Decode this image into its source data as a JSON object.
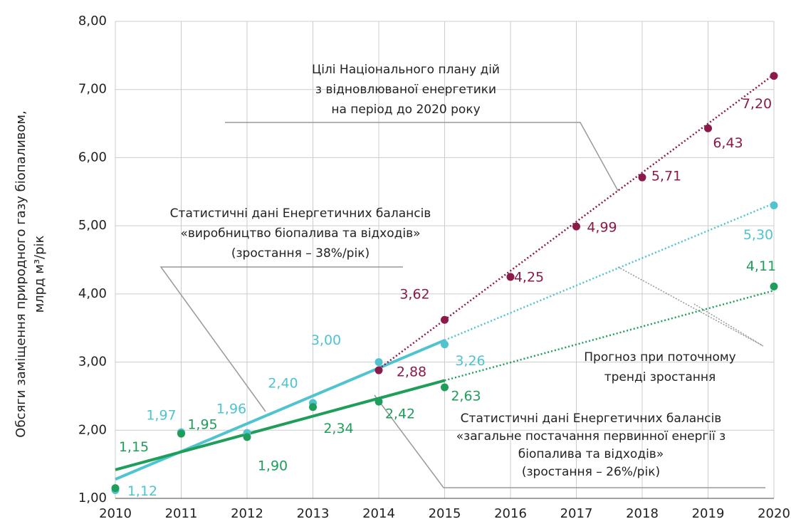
{
  "chart_data": {
    "type": "line",
    "y_label": [
      "Обсяги заміщення природного газу біопаливом,",
      "млрд м³/рік"
    ],
    "xlim": [
      2010,
      2020
    ],
    "xticks": [
      2010,
      2011,
      2012,
      2013,
      2014,
      2015,
      2016,
      2017,
      2018,
      2019,
      2020
    ],
    "ylim": [
      1,
      8
    ],
    "yticks": [
      {
        "value": 1,
        "label": "1,00"
      },
      {
        "value": 2,
        "label": "2,00"
      },
      {
        "value": 3,
        "label": "3,00"
      },
      {
        "value": 4,
        "label": "4,00"
      },
      {
        "value": 5,
        "label": "5,00"
      },
      {
        "value": 6,
        "label": "6,00"
      },
      {
        "value": 7,
        "label": "7,00"
      },
      {
        "value": 8,
        "label": "8,00"
      }
    ],
    "grid": true,
    "series": [
      {
        "color": "#4fc3d0",
        "x": [
          2010,
          2011,
          2012,
          2013,
          2014,
          2015,
          2020
        ],
        "values": [
          1.12,
          1.97,
          1.96,
          2.4,
          3.0,
          3.26,
          5.3
        ],
        "value_labels": [
          "1,12",
          "1,97",
          "1,96",
          "2,40",
          "3,00",
          "3,26",
          "5,30"
        ]
      },
      {
        "color": "#1e9e5a",
        "x": [
          2010,
          2011,
          2012,
          2013,
          2014,
          2015,
          2020
        ],
        "values": [
          1.15,
          1.95,
          1.9,
          2.34,
          2.42,
          2.63,
          4.11
        ],
        "value_labels": [
          "1,15",
          "1,95",
          "1,90",
          "2,34",
          "2,42",
          "2,63",
          "4,11"
        ]
      },
      {
        "color": "#8b1a4a",
        "x": [
          2014,
          2015,
          2016,
          2017,
          2018,
          2019,
          2020
        ],
        "values": [
          2.88,
          3.62,
          4.25,
          4.99,
          5.71,
          6.43,
          7.2
        ],
        "value_labels": [
          "2,88",
          "3,62",
          "4,25",
          "4,99",
          "5,71",
          "6,43",
          "7,20"
        ]
      }
    ],
    "trend_lines": [
      {
        "color": "#4fc3d0",
        "style": "solid",
        "x": [
          2010,
          2015
        ],
        "values": [
          1.28,
          3.32
        ]
      },
      {
        "color": "#4fc3d0",
        "style": "dotted",
        "x": [
          2015,
          2020
        ],
        "values": [
          3.32,
          5.33
        ]
      },
      {
        "color": "#1e9e5a",
        "style": "solid",
        "x": [
          2010,
          2015
        ],
        "values": [
          1.42,
          2.73
        ]
      },
      {
        "color": "#1e9e5a",
        "style": "dotted",
        "x": [
          2015,
          2020
        ],
        "values": [
          2.73,
          4.05
        ]
      },
      {
        "color": "#8b1a4a",
        "style": "dotted",
        "x": [
          2014,
          2020
        ],
        "values": [
          2.9,
          7.22
        ]
      }
    ],
    "annotations": [
      [
        "Цілі Національного плану дій",
        "з відновлюваної енергетики",
        "на період до 2020 року"
      ],
      [
        "Статистичні дані Енергетичних балансів",
        "«виробництво біопалива та відходів»",
        "(зростання – 38%/рік)"
      ],
      [
        "Прогноз при поточному",
        "тренді зростання"
      ],
      [
        "Статистичні дані Енергетичних балансів",
        "«загальне постачання первинної енергії з",
        "біопалива та відходів»",
        "(зростання – 26%/рік)"
      ]
    ]
  }
}
